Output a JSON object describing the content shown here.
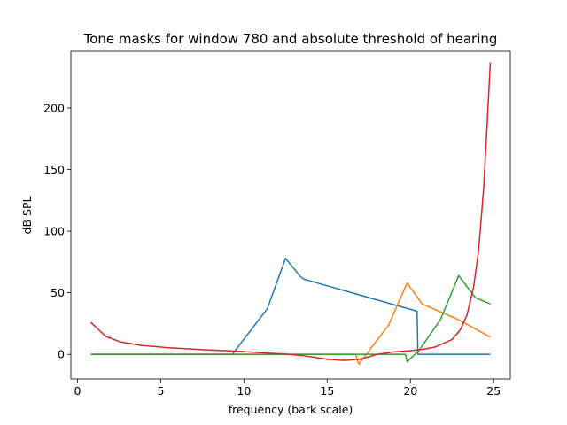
{
  "chart_data": {
    "type": "line",
    "title": "Tone masks for window 780 and absolute threshold of hearing",
    "xlabel": "frequency (bark scale)",
    "ylabel": "dB SPL",
    "xlim": [
      -0.4,
      26.0
    ],
    "ylim": [
      -20,
      246
    ],
    "xticks": [
      0,
      5,
      10,
      15,
      20,
      25
    ],
    "yticks": [
      0,
      50,
      100,
      150,
      200
    ],
    "grid": false,
    "series": [
      {
        "color": "#1f77b4",
        "x": [
          0.8,
          9.3,
          11.4,
          12.5,
          13.4,
          13.6,
          20.4,
          20.45,
          24.8
        ],
        "y": [
          0,
          0,
          37,
          78,
          63,
          61,
          35,
          0,
          0
        ]
      },
      {
        "color": "#ff7f0e",
        "x": [
          0.8,
          16.7,
          16.9,
          18.7,
          19.8,
          20.7,
          22.9,
          24.8
        ],
        "y": [
          0,
          0,
          -8,
          24,
          58,
          41,
          28,
          14
        ]
      },
      {
        "color": "#2ca02c",
        "x": [
          0.8,
          19.7,
          19.8,
          20.5,
          21.8,
          22.9,
          23.9,
          24.8
        ],
        "y": [
          0,
          0,
          -6,
          3,
          28,
          64,
          46,
          41
        ]
      },
      {
        "color": "#d62728",
        "x": [
          0.8,
          1.7,
          2.6,
          3.8,
          5.5,
          7.5,
          9.5,
          11.0,
          12.5,
          13.5,
          15.0,
          16.0,
          17.0,
          18.0,
          19.0,
          20.0,
          20.7,
          21.5,
          22.5,
          23.0,
          23.4,
          23.8,
          24.1,
          24.4,
          24.6,
          24.8
        ],
        "y": [
          26,
          14.5,
          10,
          7.3,
          5.3,
          3.8,
          2.6,
          1.4,
          0.2,
          -1,
          -4,
          -5,
          -4,
          0,
          2,
          3,
          4,
          6,
          12,
          20,
          32,
          55,
          85,
          135,
          185,
          237
        ]
      }
    ]
  }
}
